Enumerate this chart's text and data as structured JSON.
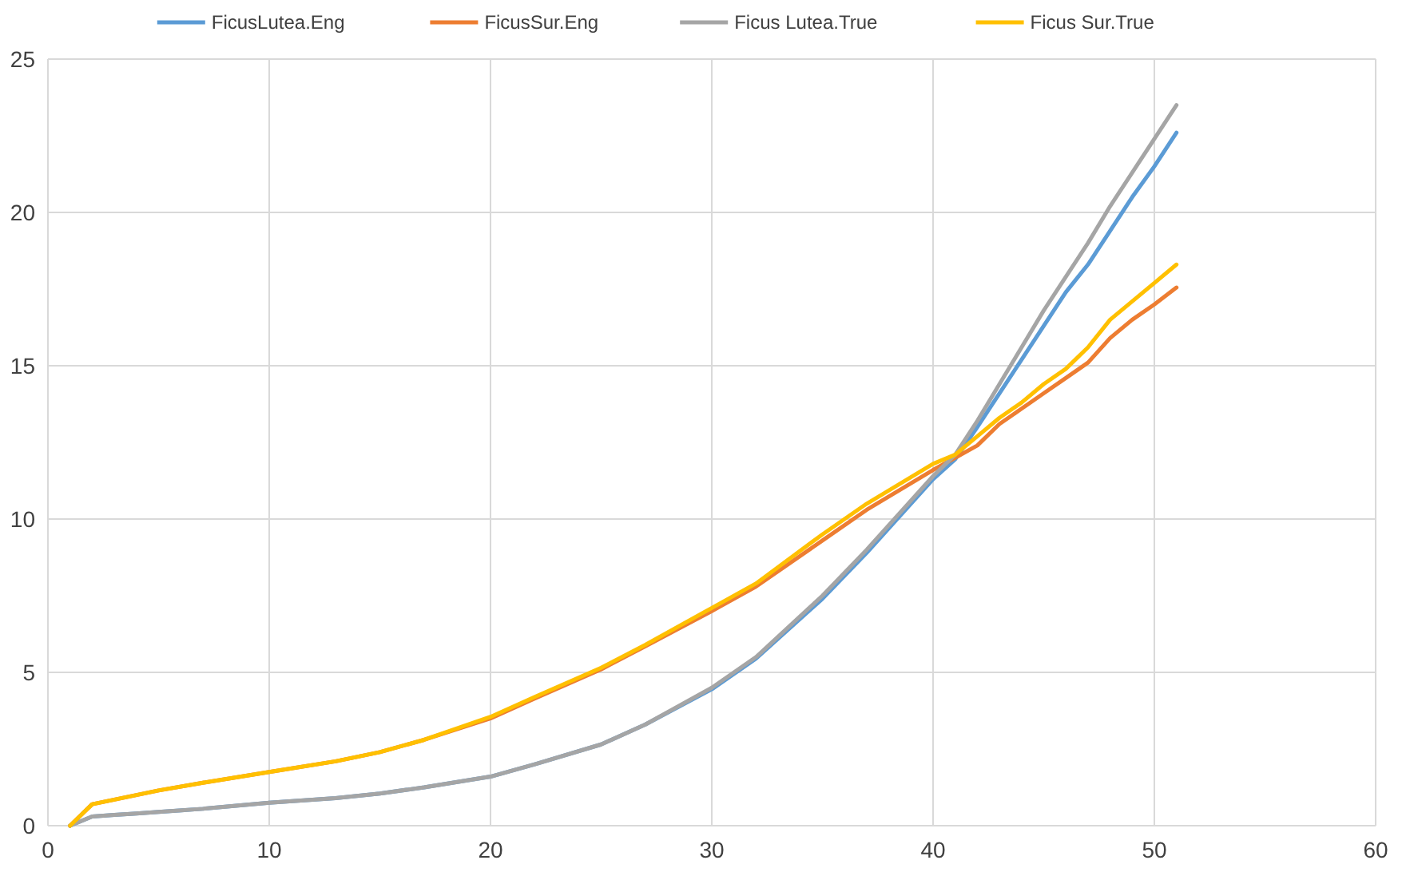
{
  "chart_data": {
    "type": "line",
    "x": [
      1,
      2,
      3,
      4,
      5,
      7,
      10,
      13,
      15,
      17,
      20,
      22,
      25,
      27,
      30,
      32,
      35,
      37,
      40,
      41,
      42,
      43,
      44,
      45,
      46,
      47,
      48,
      49,
      50,
      51
    ],
    "series": [
      {
        "name": "FicusLutea.Eng",
        "color": "#5b9bd5",
        "values": [
          0,
          0.3,
          0.35,
          0.4,
          0.45,
          0.55,
          0.75,
          0.9,
          1.05,
          1.25,
          1.6,
          2.0,
          2.65,
          3.3,
          4.45,
          5.45,
          7.4,
          8.9,
          11.3,
          11.95,
          13.0,
          14.1,
          15.2,
          16.3,
          17.4,
          18.3,
          19.4,
          20.5,
          21.5,
          22.6
        ]
      },
      {
        "name": "FicusSur.Eng",
        "color": "#ed7d31",
        "values": [
          0,
          0.7,
          0.85,
          1.0,
          1.15,
          1.4,
          1.75,
          2.1,
          2.4,
          2.8,
          3.5,
          4.15,
          5.1,
          5.85,
          7.0,
          7.8,
          9.3,
          10.3,
          11.6,
          12.0,
          12.4,
          13.1,
          13.6,
          14.1,
          14.6,
          15.1,
          15.9,
          16.5,
          17.0,
          17.55
        ]
      },
      {
        "name": "Ficus Lutea.True",
        "color": "#a5a5a5",
        "values": [
          0,
          0.3,
          0.35,
          0.4,
          0.45,
          0.55,
          0.75,
          0.9,
          1.05,
          1.25,
          1.6,
          2.0,
          2.65,
          3.3,
          4.5,
          5.5,
          7.5,
          9.0,
          11.4,
          12.1,
          13.2,
          14.4,
          15.6,
          16.8,
          17.9,
          19.0,
          20.2,
          21.3,
          22.4,
          23.5
        ]
      },
      {
        "name": "Ficus Sur.True",
        "color": "#ffc000",
        "values": [
          0,
          0.7,
          0.85,
          1.0,
          1.15,
          1.4,
          1.75,
          2.1,
          2.4,
          2.8,
          3.55,
          4.2,
          5.15,
          5.9,
          7.1,
          7.9,
          9.5,
          10.5,
          11.8,
          12.1,
          12.7,
          13.3,
          13.8,
          14.4,
          14.9,
          15.6,
          16.5,
          17.1,
          17.7,
          18.3
        ]
      }
    ],
    "xlim": [
      0,
      60
    ],
    "xticks": [
      0,
      10,
      20,
      30,
      40,
      50,
      60
    ],
    "ylim": [
      0,
      25
    ],
    "yticks": [
      0,
      5,
      10,
      15,
      20,
      25
    ],
    "grid": true,
    "legend": "top",
    "marker": "none",
    "line_style": "solid"
  }
}
